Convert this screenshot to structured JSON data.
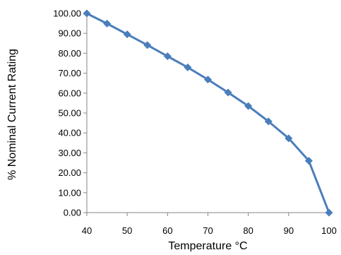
{
  "chart_data": {
    "type": "line",
    "title": "",
    "xlabel": "Temperature °C",
    "ylabel": "% Nominal Current Rating",
    "xlim": [
      40,
      100
    ],
    "ylim": [
      0,
      100
    ],
    "x_ticks": [
      "40",
      "50",
      "60",
      "70",
      "80",
      "90",
      "100"
    ],
    "y_ticks": [
      "0.00",
      "10.00",
      "20.00",
      "30.00",
      "40.00",
      "50.00",
      "60.00",
      "70.00",
      "80.00",
      "90.00",
      "100.00"
    ],
    "grid": false,
    "legend": "none",
    "series": [
      {
        "color": "#4a7ebb",
        "marker": "diamond",
        "x": [
          40,
          45,
          50,
          55,
          60,
          65,
          70,
          75,
          80,
          85,
          90,
          95,
          100
        ],
        "y": [
          100.0,
          94.9,
          89.5,
          84.1,
          78.5,
          72.9,
          66.8,
          60.3,
          53.5,
          45.8,
          37.3,
          26.0,
          0.0
        ]
      }
    ]
  }
}
